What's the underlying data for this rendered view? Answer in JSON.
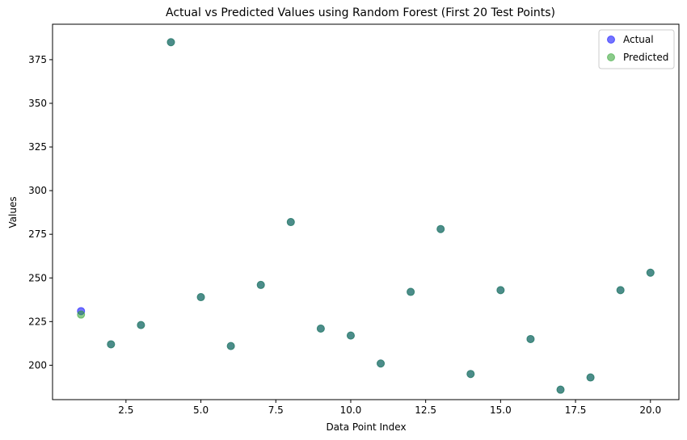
{
  "chart_data": {
    "type": "scatter",
    "title": "Actual vs Predicted Values using Random Forest (First 20 Test Points)",
    "xlabel": "Data Point Index",
    "ylabel": "Values",
    "xlim": [
      0.05,
      20.95
    ],
    "ylim": [
      180.3,
      395.3
    ],
    "xticks": [
      2.5,
      5.0,
      7.5,
      10.0,
      12.5,
      15.0,
      17.5,
      20.0
    ],
    "xtick_labels": [
      "2.5",
      "5.0",
      "7.5",
      "10.0",
      "12.5",
      "15.0",
      "17.5",
      "20.0"
    ],
    "yticks": [
      200,
      225,
      250,
      275,
      300,
      325,
      350,
      375
    ],
    "ytick_labels": [
      "200",
      "225",
      "250",
      "275",
      "300",
      "325",
      "350",
      "375"
    ],
    "grid": false,
    "legend_position": "top-right",
    "series": [
      {
        "name": "Actual",
        "color": "#0000ff",
        "alpha": 0.55,
        "x": [
          1,
          2,
          3,
          4,
          5,
          6,
          7,
          8,
          9,
          10,
          11,
          12,
          13,
          14,
          15,
          16,
          17,
          18,
          19,
          20
        ],
        "y": [
          231,
          212,
          223,
          385,
          239,
          211,
          246,
          282,
          221,
          217,
          201,
          242,
          278,
          195,
          243,
          215,
          186,
          193,
          243,
          253
        ]
      },
      {
        "name": "Predicted",
        "color": "#2ca02c",
        "alpha": 0.55,
        "x": [
          1,
          2,
          3,
          4,
          5,
          6,
          7,
          8,
          9,
          10,
          11,
          12,
          13,
          14,
          15,
          16,
          17,
          18,
          19,
          20
        ],
        "y": [
          229,
          212,
          223,
          385,
          239,
          211,
          246,
          282,
          221,
          217,
          201,
          242,
          278,
          195,
          243,
          215,
          186,
          193,
          243,
          253
        ]
      }
    ]
  }
}
